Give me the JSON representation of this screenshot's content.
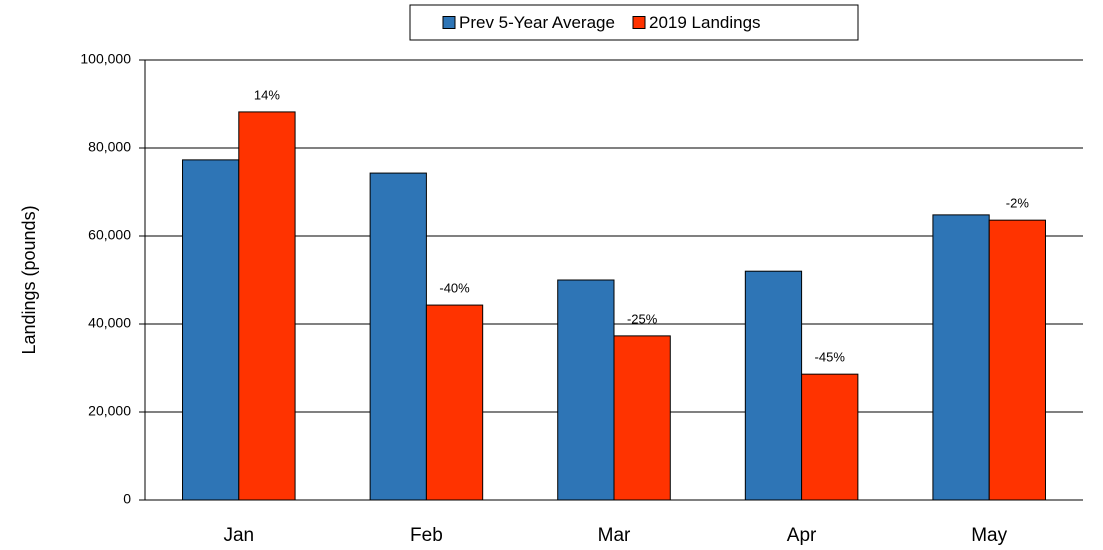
{
  "chart_data": {
    "type": "bar",
    "legend": "top",
    "y_label": "Landings (pounds)",
    "categories": [
      "Jan",
      "Feb",
      "Mar",
      "Apr",
      "May"
    ],
    "series": [
      {
        "name": "Prev 5-Year Average",
        "color": "#2e75b6",
        "values": [
          77300,
          74300,
          50000,
          52000,
          64800
        ]
      },
      {
        "name": "2019 Landings",
        "color": "#ff3300",
        "values": [
          88200,
          44300,
          37300,
          28600,
          63600
        ]
      }
    ],
    "annotations": [
      "14%",
      "-40%",
      "-25%",
      "-45%",
      "-2%"
    ],
    "ylim": [
      0,
      100000
    ],
    "yticks": [
      0,
      {
        "value": 20000,
        "label": "20,000"
      },
      {
        "value": 40000,
        "label": "40,000"
      },
      {
        "value": 60000,
        "label": "60,000"
      },
      {
        "value": 80000,
        "label": "80,000"
      },
      {
        "value": 100000,
        "label": "100,000"
      }
    ],
    "grid": true
  }
}
